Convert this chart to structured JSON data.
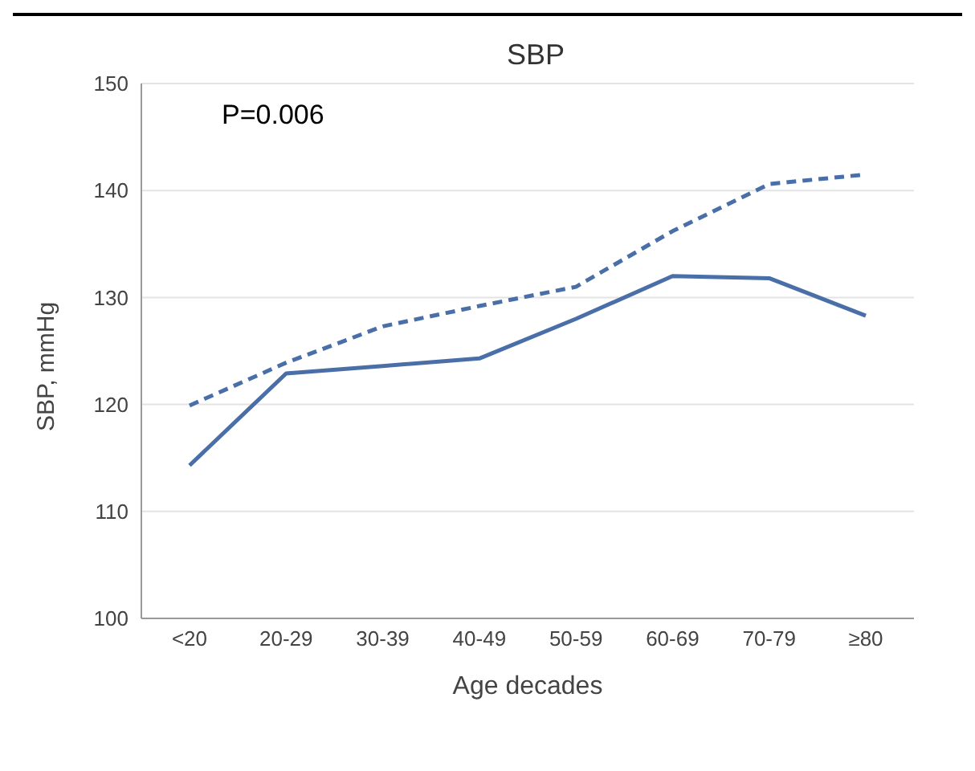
{
  "chart_data": {
    "type": "line",
    "title": "SBP",
    "xlabel": "Age decades",
    "ylabel": "SBP, mmHg",
    "annotations": [
      "P=0.006"
    ],
    "categories": [
      "<20",
      "20-29",
      "30-39",
      "40-49",
      "50-59",
      "60-69",
      "70-79",
      "≥80"
    ],
    "series": [
      {
        "color": "#4a6fa8",
        "line_style": "dashed",
        "values": [
          119.9,
          123.9,
          127.3,
          129.2,
          131.0,
          136.2,
          140.6,
          141.5
        ]
      },
      {
        "color": "#4a6fa8",
        "line_style": "solid",
        "values": [
          114.3,
          122.9,
          123.6,
          124.3,
          128.0,
          132.0,
          131.8,
          128.3
        ]
      }
    ],
    "ylim": [
      100,
      150
    ],
    "yticks": [
      100,
      110,
      120,
      130,
      140,
      150
    ],
    "grid": "y",
    "legend": false,
    "marker": "none"
  }
}
